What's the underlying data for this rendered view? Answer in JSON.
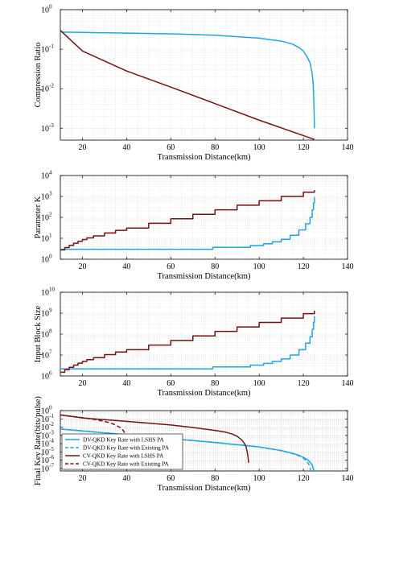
{
  "colors": {
    "dv": "#1aa7e6",
    "cv": "#7a0f0f",
    "grid": "#d4d4d4",
    "axis": "#000000"
  },
  "chart_data": [
    {
      "type": "line",
      "xlabel": "Transmission Distance(km)",
      "ylabel": "Compression Ratio",
      "xlim": [
        10,
        140
      ],
      "ylim_log10": [
        -3.3,
        0
      ],
      "yscale": "log",
      "x_ticks": [
        "20",
        "40",
        "60",
        "80",
        "100",
        "120",
        "140"
      ],
      "y_ticks": [
        {
          "base": "10",
          "exp": "0"
        },
        {
          "base": "10",
          "exp": "-1"
        },
        {
          "base": "10",
          "exp": "-2"
        },
        {
          "base": "10",
          "exp": "-3"
        }
      ],
      "grid": true,
      "series": [
        {
          "key": "dv_lshs",
          "style": "solid",
          "points": [
            [
              10,
              0.27
            ],
            [
              20,
              0.265
            ],
            [
              40,
              0.255
            ],
            [
              60,
              0.245
            ],
            [
              80,
              0.225
            ],
            [
              100,
              0.19
            ],
            [
              110,
              0.16
            ],
            [
              115,
              0.135
            ],
            [
              118,
              0.11
            ],
            [
              120,
              0.09
            ],
            [
              122,
              0.06
            ],
            [
              123,
              0.045
            ],
            [
              124,
              0.025
            ],
            [
              124.5,
              0.012
            ],
            [
              124.8,
              0.004
            ],
            [
              125,
              0.001
            ]
          ]
        },
        {
          "key": "cv_lshs",
          "style": "solid",
          "points": [
            [
              10,
              0.3
            ],
            [
              20,
              0.09
            ],
            [
              40,
              0.028
            ],
            [
              60,
              0.011
            ],
            [
              80,
              0.0042
            ],
            [
              100,
              0.0016
            ],
            [
              125,
              0.00052
            ]
          ]
        }
      ]
    },
    {
      "type": "line",
      "xlabel": "Transmission Distance(km)",
      "ylabel": "Parameter K",
      "xlim": [
        10,
        140
      ],
      "ylim_log10": [
        0,
        4
      ],
      "yscale": "log",
      "x_ticks": [
        "20",
        "40",
        "60",
        "80",
        "100",
        "120",
        "140"
      ],
      "y_ticks": [
        {
          "base": "10",
          "exp": "4"
        },
        {
          "base": "10",
          "exp": "3"
        },
        {
          "base": "10",
          "exp": "2"
        },
        {
          "base": "10",
          "exp": "1"
        },
        {
          "base": "10",
          "exp": "0"
        }
      ],
      "grid": true,
      "series": [
        {
          "key": "dv_lshs",
          "style": "step",
          "points": [
            [
              10,
              3
            ],
            [
              79,
              3
            ],
            [
              79,
              3.7
            ],
            [
              96,
              3.7
            ],
            [
              96,
              4.5
            ],
            [
              102,
              4.5
            ],
            [
              102,
              5.5
            ],
            [
              106,
              5.5
            ],
            [
              106,
              6.8
            ],
            [
              110,
              9
            ],
            [
              114,
              14
            ],
            [
              118,
              25
            ],
            [
              121,
              50
            ],
            [
              123,
              100
            ],
            [
              124,
              230
            ],
            [
              124.6,
              500
            ],
            [
              125,
              950
            ]
          ]
        },
        {
          "key": "cv_lshs",
          "style": "step",
          "points": [
            [
              10,
              2.8
            ],
            [
              12,
              3.6
            ],
            [
              14,
              4.6
            ],
            [
              16,
              5.8
            ],
            [
              18,
              7.2
            ],
            [
              20,
              8.8
            ],
            [
              22,
              10.5
            ],
            [
              25,
              13
            ],
            [
              30,
              18
            ],
            [
              35,
              24
            ],
            [
              40,
              31
            ],
            [
              50,
              52
            ],
            [
              60,
              86
            ],
            [
              70,
              140
            ],
            [
              80,
              230
            ],
            [
              90,
              380
            ],
            [
              100,
              620
            ],
            [
              110,
              1000
            ],
            [
              120,
              1600
            ],
            [
              125,
              2000
            ]
          ]
        }
      ]
    },
    {
      "type": "line",
      "xlabel": "Transmission Distance(km)",
      "ylabel": "Input Block Size",
      "xlim": [
        10,
        140
      ],
      "ylim_log10": [
        6,
        10
      ],
      "yscale": "log",
      "x_ticks": [
        "20",
        "40",
        "60",
        "80",
        "100",
        "120",
        "140"
      ],
      "y_ticks": [
        {
          "base": "10",
          "exp": "10"
        },
        {
          "base": "10",
          "exp": "9"
        },
        {
          "base": "10",
          "exp": "8"
        },
        {
          "base": "10",
          "exp": "7"
        },
        {
          "base": "10",
          "exp": "6"
        }
      ],
      "grid": true,
      "series": [
        {
          "key": "dv_lshs",
          "style": "step",
          "points": [
            [
              10,
              2200000
            ],
            [
              79,
              2200000
            ],
            [
              79,
              2700000
            ],
            [
              96,
              2700000
            ],
            [
              96,
              3300000
            ],
            [
              102,
              3300000
            ],
            [
              102,
              4000000
            ],
            [
              106,
              4000000
            ],
            [
              106,
              5000000
            ],
            [
              110,
              6600000
            ],
            [
              114,
              10000000
            ],
            [
              118,
              18000000
            ],
            [
              121,
              37000000
            ],
            [
              123,
              75000000
            ],
            [
              124,
              170000000
            ],
            [
              124.6,
              370000000
            ],
            [
              125,
              700000000
            ]
          ]
        },
        {
          "key": "cv_lshs",
          "style": "step",
          "points": [
            [
              10,
              1500000
            ],
            [
              12,
              2000000
            ],
            [
              14,
              2600000
            ],
            [
              16,
              3300000
            ],
            [
              18,
              4100000
            ],
            [
              20,
              5000000
            ],
            [
              22,
              6000000
            ],
            [
              25,
              7500000
            ],
            [
              30,
              10500000
            ],
            [
              35,
              14000000
            ],
            [
              40,
              18000000
            ],
            [
              50,
              30000000
            ],
            [
              60,
              50000000
            ],
            [
              70,
              82000000
            ],
            [
              80,
              135000000
            ],
            [
              90,
              220000000
            ],
            [
              100,
              360000000
            ],
            [
              110,
              580000000
            ],
            [
              120,
              950000000
            ],
            [
              125,
              1300000000
            ]
          ]
        }
      ]
    },
    {
      "type": "line",
      "xlabel": "Transmission Distance(km)",
      "ylabel": "Final Key Rate(bits/pulse)",
      "xlim": [
        10,
        140
      ],
      "ylim_log10": [
        -7.3,
        0
      ],
      "yscale": "log",
      "x_ticks": [
        "20",
        "40",
        "60",
        "80",
        "100",
        "120",
        "140"
      ],
      "y_ticks": [
        {
          "base": "10",
          "exp": "0"
        },
        {
          "base": "10",
          "exp": "-1"
        },
        {
          "base": "10",
          "exp": "-2"
        },
        {
          "base": "10",
          "exp": "-3"
        },
        {
          "base": "10",
          "exp": "-4"
        },
        {
          "base": "10",
          "exp": "-5"
        },
        {
          "base": "10",
          "exp": "-6"
        },
        {
          "base": "10",
          "exp": "-7"
        }
      ],
      "grid": true,
      "legend": "bottom-left",
      "series": [
        {
          "key": "dv_lshs",
          "name": "DV-QKD Key Rate with LSHS PA",
          "style": "solid",
          "points": [
            [
              10,
              0.006
            ],
            [
              20,
              0.0035
            ],
            [
              40,
              0.0012
            ],
            [
              60,
              0.0004
            ],
            [
              80,
              0.00014
            ],
            [
              100,
              4e-05
            ],
            [
              110,
              1.5e-05
            ],
            [
              115,
              7e-06
            ],
            [
              118,
              4e-06
            ],
            [
              120,
              2.2e-06
            ],
            [
              122,
              1.1e-06
            ],
            [
              123,
              6e-07
            ],
            [
              124,
              2.5e-07
            ],
            [
              124.6,
              8e-08
            ],
            [
              125,
              5e-08
            ]
          ]
        },
        {
          "key": "dv_existing",
          "name": "DV-QKD Key Rate with Existing PA",
          "style": "dashed",
          "points": [
            [
              10,
              0.006
            ],
            [
              20,
              0.0035
            ],
            [
              40,
              0.0012
            ],
            [
              60,
              0.0004
            ],
            [
              80,
              0.00014
            ],
            [
              100,
              4e-05
            ],
            [
              110,
              1.4e-05
            ],
            [
              115,
              6.5e-06
            ],
            [
              118,
              3.5e-06
            ],
            [
              120,
              1.8e-06
            ],
            [
              121.5,
              8e-07
            ],
            [
              122.5,
              3e-07
            ],
            [
              123,
              1.2e-07
            ],
            [
              123.3,
              5e-08
            ]
          ]
        },
        {
          "key": "cv_lshs",
          "name": "CV-QKD Key Rate with LSHS PA",
          "style": "solid",
          "points": [
            [
              10,
              0.3
            ],
            [
              20,
              0.13
            ],
            [
              40,
              0.05
            ],
            [
              60,
              0.018
            ],
            [
              70,
              0.009
            ],
            [
              80,
              0.004
            ],
            [
              85,
              0.0024
            ],
            [
              88,
              0.0014
            ],
            [
              90,
              0.0008
            ],
            [
              92,
              0.0003
            ],
            [
              93,
              0.00014
            ],
            [
              94,
              5e-05
            ],
            [
              94.6,
              1e-05
            ],
            [
              95,
              2e-06
            ],
            [
              95.2,
              5e-07
            ]
          ]
        },
        {
          "key": "cv_existing",
          "name": "CV-QKD Key Rate with Existing PA",
          "style": "dashed",
          "points": [
            [
              10,
              0.3
            ],
            [
              15,
              0.2
            ],
            [
              20,
              0.14
            ],
            [
              25,
              0.09
            ],
            [
              30,
              0.05
            ],
            [
              33,
              0.03
            ],
            [
              35,
              0.018
            ],
            [
              37,
              0.009
            ],
            [
              38.5,
              0.004
            ],
            [
              39.3,
              0.0015
            ],
            [
              39.7,
              0.0005
            ],
            [
              40,
              0.00015
            ]
          ]
        }
      ]
    }
  ]
}
